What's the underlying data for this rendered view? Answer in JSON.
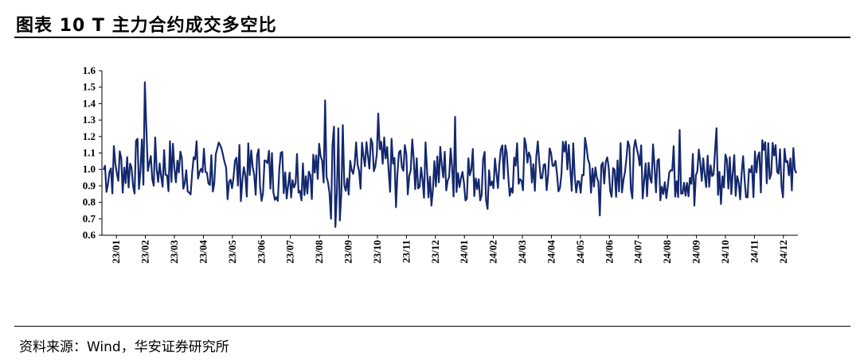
{
  "header": {
    "title": "图表 10 T 主力合约成交多空比"
  },
  "footer": {
    "source": "资料来源：Wind，华安证券研究所"
  },
  "chart_data": {
    "type": "line",
    "title": "图表 10 T 主力合约成交多空比",
    "xlabel": "",
    "ylabel": "",
    "ylim": [
      0.6,
      1.6
    ],
    "yticks": [
      "1.6",
      "1.5",
      "1.4",
      "1.3",
      "1.2",
      "1.1",
      "1.0",
      "0.9",
      "0.8",
      "0.7",
      "0.6"
    ],
    "x_tick_labels": [
      "23/01",
      "23/02",
      "23/03",
      "23/04",
      "23/05",
      "23/06",
      "23/07",
      "23/08",
      "23/09",
      "23/10",
      "23/11",
      "23/12",
      "24/01",
      "24/02",
      "24/03",
      "24/04",
      "24/05",
      "24/06",
      "24/07",
      "24/08",
      "24/09",
      "24/10",
      "24/11",
      "24/12"
    ],
    "grid": false,
    "legend": "none",
    "line_color": "#14286e",
    "series": [
      {
        "name": "",
        "x": [
          "23/01",
          "23/02",
          "23/03",
          "23/04",
          "23/05",
          "23/06",
          "23/07",
          "23/08",
          "23/09",
          "23/10",
          "23/11",
          "23/12",
          "24/01",
          "24/02",
          "24/03",
          "24/04",
          "24/05",
          "24/06",
          "24/07",
          "24/08",
          "24/09",
          "24/10",
          "24/11",
          "24/12",
          "24/12 end"
        ],
        "values": [
          1.02,
          1.05,
          1.0,
          1.0,
          1.05,
          1.0,
          1.08,
          1.0,
          1.0,
          1.05,
          1.0,
          1.03,
          0.97,
          1.0,
          1.0,
          1.02,
          1.0,
          1.05,
          1.03,
          1.0,
          1.02,
          1.0,
          1.03,
          1.0,
          1.04
        ]
      }
    ]
  }
}
